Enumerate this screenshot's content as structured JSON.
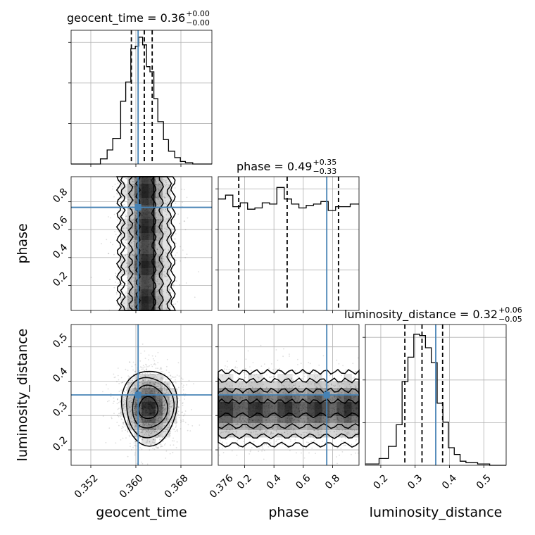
{
  "chart_data": {
    "type": "corner",
    "parameters": [
      "geocent_time",
      "phase",
      "luminosity_distance"
    ],
    "grid": true,
    "titles": [
      {
        "name": "geocent_time",
        "median": "0.36",
        "plus": "+0.00",
        "minus": "−0.00"
      },
      {
        "name": "phase",
        "median": "0.49",
        "plus": "+0.35",
        "minus": "−0.33"
      },
      {
        "name": "luminosity_distance",
        "median": "0.32",
        "plus": "+0.06",
        "minus": "−0.05"
      }
    ],
    "axis_labels": {
      "x": [
        "geocent_time",
        "phase",
        "luminosity_distance"
      ],
      "y": [
        "phase",
        "luminosity_distance"
      ]
    },
    "ranges": {
      "geocent_time": [
        0.3485,
        0.3735
      ],
      "phase": [
        0.02,
        0.98
      ],
      "luminosity_distance": [
        0.155,
        0.565
      ]
    },
    "ticks": {
      "geocent_time": [
        "0.352",
        "0.360",
        "0.368",
        "0.376"
      ],
      "phase": [
        "0.2",
        "0.4",
        "0.6",
        "0.8"
      ],
      "luminosity_distance": [
        "0.2",
        "0.3",
        "0.4",
        "0.5"
      ]
    },
    "injection": {
      "geocent_time": 0.3604,
      "phase": 0.76,
      "luminosity_distance": 0.36
    },
    "quantiles": {
      "geocent_time": [
        0.3592,
        0.3615,
        0.3629
      ],
      "phase": [
        0.16,
        0.49,
        0.84
      ],
      "luminosity_distance": [
        0.27,
        0.32,
        0.38
      ]
    },
    "marginals": {
      "geocent_time": {
        "edges": [
          0.3485,
          0.3537,
          0.3549,
          0.3559,
          0.3573,
          0.3582,
          0.3591,
          0.3599,
          0.3605,
          0.3612,
          0.3619,
          0.3625,
          0.3632,
          0.3639,
          0.3649,
          0.3658,
          0.3669,
          0.3679,
          0.3688,
          0.3701,
          0.3735
        ],
        "heights": [
          0,
          0.04,
          0.11,
          0.2,
          0.49,
          0.64,
          0.9,
          0.92,
          0.99,
          0.93,
          0.76,
          0.72,
          0.51,
          0.33,
          0.19,
          0.1,
          0.05,
          0.02,
          0.01,
          0
        ]
      },
      "phase": {
        "edges": [
          0.02,
          0.07,
          0.12,
          0.17,
          0.22,
          0.27,
          0.32,
          0.37,
          0.42,
          0.47,
          0.52,
          0.57,
          0.62,
          0.67,
          0.72,
          0.77,
          0.82,
          0.87,
          0.92,
          0.98
        ],
        "heights": [
          0.87,
          0.9,
          0.81,
          0.84,
          0.79,
          0.8,
          0.84,
          0.83,
          0.96,
          0.87,
          0.83,
          0.8,
          0.82,
          0.83,
          0.85,
          0.78,
          0.81,
          0.81,
          0.83
        ]
      },
      "luminosity_distance": {
        "edges": [
          0.155,
          0.195,
          0.222,
          0.245,
          0.262,
          0.279,
          0.296,
          0.313,
          0.33,
          0.347,
          0.364,
          0.381,
          0.397,
          0.414,
          0.431,
          0.448,
          0.482,
          0.517,
          0.565
        ],
        "heights": [
          0.01,
          0.05,
          0.14,
          0.3,
          0.62,
          0.8,
          0.97,
          0.96,
          0.87,
          0.76,
          0.46,
          0.32,
          0.13,
          0.08,
          0.03,
          0.02,
          0.01,
          0
        ]
      }
    },
    "contours": {
      "phase_vs_geocent_time": [
        {
          "xc": 0.3618,
          "xr": 0.0048
        },
        {
          "xc": 0.3618,
          "xr": 0.0041
        },
        {
          "xc": 0.3618,
          "xr": 0.0027
        },
        {
          "xc": 0.3618,
          "xr": 0.0014
        }
      ],
      "luminosity_distance_vs_geocent_time": [
        {
          "cx": 0.3624,
          "cy": 0.325,
          "rx": 0.0049,
          "ry": 0.109
        },
        {
          "cx": 0.3624,
          "cy": 0.325,
          "rx": 0.0042,
          "ry": 0.087
        },
        {
          "cx": 0.3624,
          "cy": 0.325,
          "rx": 0.0031,
          "ry": 0.062
        },
        {
          "cx": 0.3622,
          "cy": 0.322,
          "rx": 0.0017,
          "ry": 0.032
        }
      ],
      "luminosity_distance_vs_phase": [
        {
          "yc": 0.321,
          "yr": 0.106
        },
        {
          "yc": 0.321,
          "yr": 0.081
        },
        {
          "yc": 0.321,
          "yr": 0.052
        },
        {
          "yc": 0.321,
          "yr": 0.02
        }
      ]
    }
  }
}
